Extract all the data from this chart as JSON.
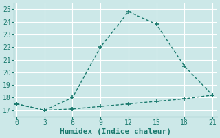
{
  "xlabel": "Humidex (Indice chaleur)",
  "x": [
    0,
    3,
    6,
    9,
    12,
    15,
    18,
    21
  ],
  "line1_y": [
    17.5,
    17.0,
    18.0,
    22.0,
    24.8,
    23.8,
    20.5,
    18.2
  ],
  "line2_y": [
    17.5,
    17.0,
    17.1,
    17.3,
    17.5,
    17.7,
    17.9,
    18.2
  ],
  "line_color": "#1a7a6e",
  "bg_color": "#cce8e8",
  "grid_color": "#b8d8d8",
  "ylim": [
    16.5,
    25.5
  ],
  "xlim": [
    -0.3,
    21.5
  ],
  "yticks": [
    17,
    18,
    19,
    20,
    21,
    22,
    23,
    24,
    25
  ],
  "xticks": [
    0,
    3,
    6,
    9,
    12,
    15,
    18,
    21
  ],
  "markersize": 4,
  "linewidth": 1.0,
  "tick_fontsize": 7,
  "xlabel_fontsize": 8
}
